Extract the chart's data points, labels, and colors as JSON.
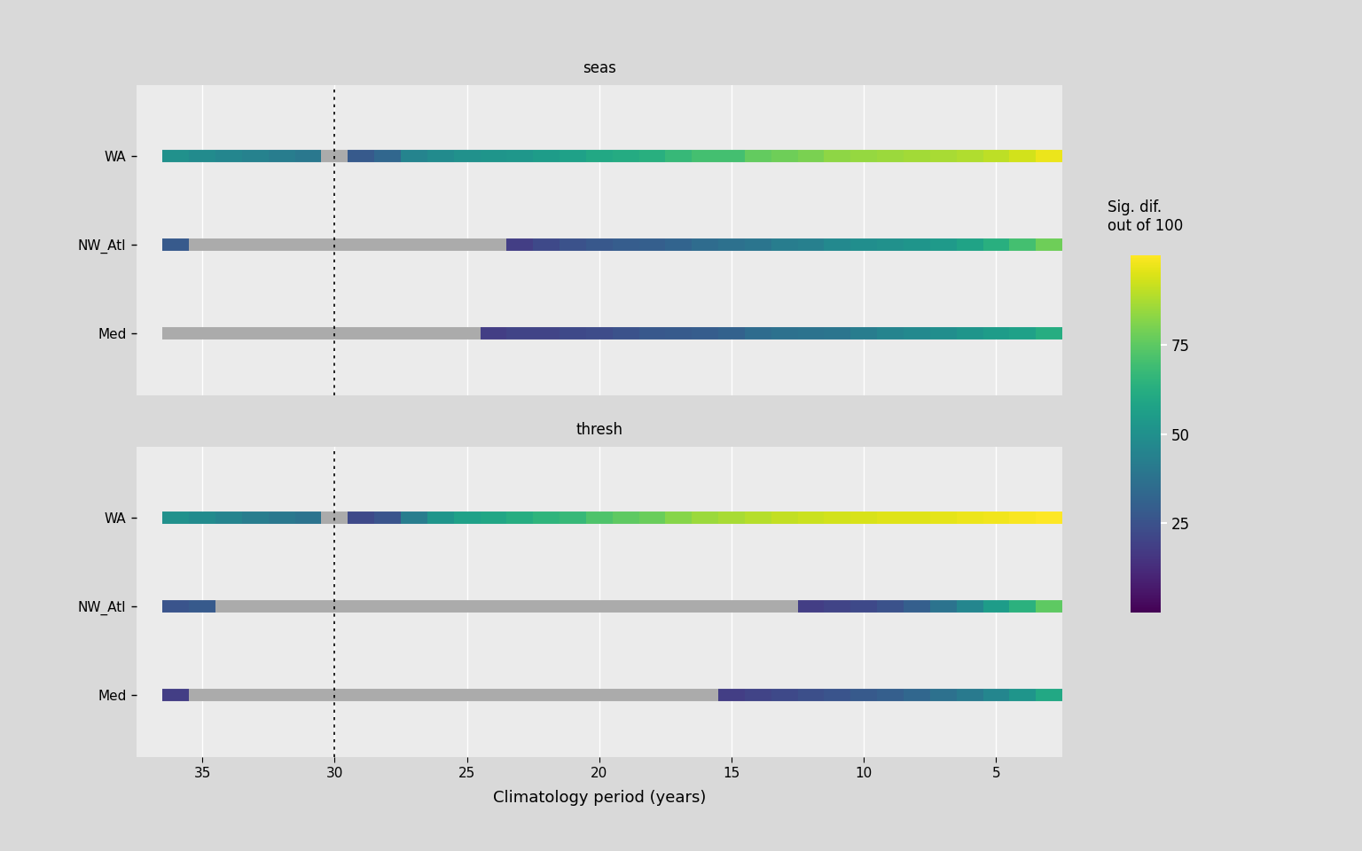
{
  "panels": [
    "seas",
    "thresh"
  ],
  "rows": [
    "WA",
    "NW_Atl",
    "Med"
  ],
  "x_years": [
    36,
    35,
    34,
    33,
    32,
    31,
    30,
    29,
    28,
    27,
    26,
    25,
    24,
    23,
    22,
    21,
    20,
    19,
    18,
    17,
    16,
    15,
    14,
    13,
    12,
    11,
    10,
    9,
    8,
    7,
    6,
    5,
    4,
    3
  ],
  "vline_x": 30,
  "xlim_left": 37.5,
  "xlim_right": 2.5,
  "xticks": [
    35,
    30,
    25,
    20,
    15,
    10,
    5
  ],
  "xlabel": "Climatology period (years)",
  "colorbar_label_line1": "Sig. dif.",
  "colorbar_label_line2": "out of 100",
  "colorbar_ticks": [
    25,
    50,
    75
  ],
  "vmin": 0,
  "vmax": 100,
  "panel_bg": "#EBEBEB",
  "strip_bg": "#D9D9D9",
  "outer_bg": "#D9D9D9",
  "grey_color": "#ABABAB",
  "line_width": 10,
  "seas_WA": [
    50,
    48,
    46,
    44,
    42,
    40,
    0,
    28,
    33,
    45,
    48,
    50,
    52,
    53,
    55,
    57,
    60,
    61,
    63,
    67,
    70,
    70,
    76,
    78,
    80,
    83,
    84,
    85,
    86,
    87,
    88,
    90,
    93,
    97
  ],
  "seas_NW_Atl": [
    28,
    0,
    0,
    0,
    0,
    0,
    0,
    0,
    0,
    0,
    0,
    0,
    0,
    18,
    22,
    25,
    27,
    29,
    30,
    32,
    35,
    37,
    39,
    42,
    43,
    47,
    49,
    50,
    52,
    54,
    58,
    63,
    70,
    78
  ],
  "seas_Med": [
    0,
    0,
    0,
    0,
    0,
    0,
    0,
    0,
    0,
    0,
    0,
    0,
    18,
    20,
    20,
    22,
    23,
    25,
    27,
    28,
    29,
    31,
    35,
    37,
    38,
    39,
    42,
    45,
    47,
    49,
    52,
    55,
    57,
    62
  ],
  "thresh_WA": [
    50,
    48,
    45,
    42,
    40,
    38,
    0,
    22,
    26,
    42,
    52,
    57,
    59,
    62,
    65,
    67,
    72,
    75,
    77,
    82,
    85,
    87,
    89,
    91,
    92,
    93,
    94,
    95,
    95,
    96,
    97,
    98,
    99,
    100
  ],
  "thresh_NW_Atl": [
    26,
    28,
    0,
    0,
    0,
    0,
    0,
    0,
    0,
    0,
    0,
    0,
    0,
    0,
    0,
    0,
    0,
    0,
    0,
    0,
    0,
    0,
    0,
    0,
    18,
    20,
    22,
    25,
    30,
    38,
    46,
    55,
    64,
    75
  ],
  "thresh_Med": [
    18,
    0,
    0,
    0,
    0,
    0,
    0,
    0,
    0,
    0,
    0,
    0,
    0,
    0,
    0,
    0,
    0,
    0,
    0,
    0,
    0,
    18,
    20,
    22,
    24,
    26,
    28,
    30,
    33,
    37,
    41,
    46,
    52,
    60
  ]
}
